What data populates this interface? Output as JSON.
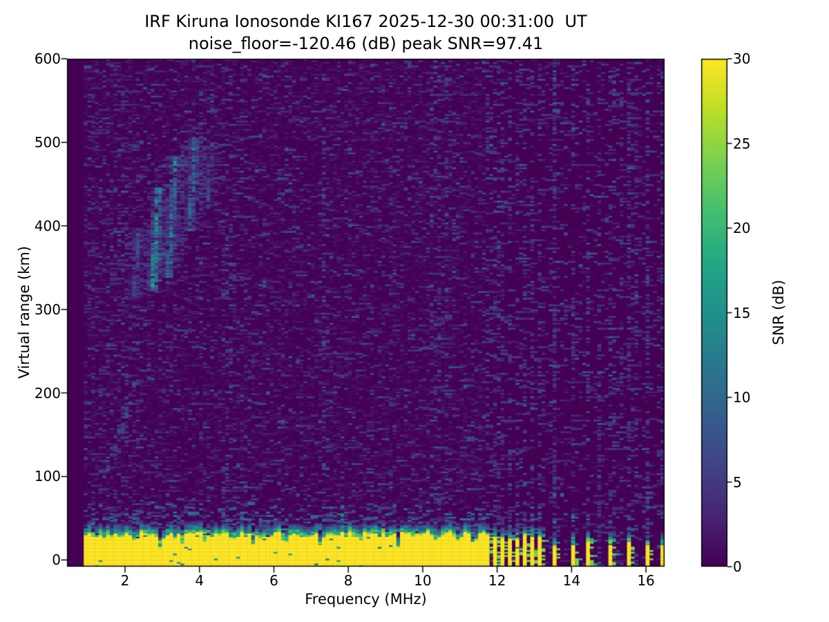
{
  "figure": {
    "title_line1": "IRF Kiruna Ionosonde KI167 2025-12-30 00:31:00  UT",
    "title_line2": "noise_floor=-120.46 (dB) peak SNR=97.41",
    "background_color": "#ffffff"
  },
  "chart_data": {
    "type": "heatmap",
    "title": "IRF Kiruna Ionosonde KI167 2025-12-30 00:31:00  UT",
    "subtitle": "noise_floor=-120.46 (dB) peak SNR=97.41",
    "station": "KI167",
    "timestamp_ut": "2025-12-30 00:31:00",
    "noise_floor_db": -120.46,
    "peak_snr_db": 97.41,
    "xlabel": "Frequency (MHz)",
    "ylabel": "Virtual range (km)",
    "colorbar_label": "SNR (dB)",
    "x_ticks": [
      2,
      4,
      6,
      8,
      10,
      12,
      14,
      16
    ],
    "y_ticks": [
      0,
      100,
      200,
      300,
      400,
      500,
      600
    ],
    "colorbar_ticks": [
      0,
      5,
      10,
      15,
      20,
      25,
      30
    ],
    "xlim": [
      0.44,
      16.5
    ],
    "ylim": [
      -8,
      600
    ],
    "clim": [
      0,
      30
    ],
    "colormap": "viridis",
    "grid": false,
    "features": {
      "data_freq_range_mhz": [
        0.89,
        16.45
      ],
      "freq_bin_mhz": 0.1,
      "range_bin_km": 2,
      "ground_band": {
        "top_km": 30,
        "transition_km": 15,
        "solid_until_mhz": 11.66,
        "notches_mhz": [
          1.4,
          2.26,
          2.95,
          3.56,
          4.15,
          4.9,
          5.42,
          6.3,
          7.27,
          8.3,
          9.33,
          10.37,
          11.0,
          11.4
        ]
      },
      "stripe_columns_mhz": [
        11.72,
        11.92,
        12.12,
        12.32,
        12.52,
        12.72,
        12.92,
        13.1,
        13.55,
        14.0,
        14.45,
        15.0,
        15.5,
        16.0,
        16.4
      ],
      "stripe_dense_below_mhz": 13.3,
      "echo_streaks": [
        {
          "f_mhz": 2.3,
          "range_km": [
            314,
            397
          ],
          "width_mhz": 0.18,
          "snr_db": 9
        },
        {
          "f_mhz": 2.82,
          "range_km": [
            323,
            445
          ],
          "width_mhz": 0.2,
          "snr_db": 18
        },
        {
          "f_mhz": 3.26,
          "range_km": [
            339,
            484
          ],
          "width_mhz": 0.17,
          "snr_db": 15
        },
        {
          "f_mhz": 3.8,
          "range_km": [
            395,
            505
          ],
          "width_mhz": 0.18,
          "snr_db": 13
        },
        {
          "f_mhz": 4.28,
          "range_km": [
            420,
            500
          ],
          "width_mhz": 0.12,
          "snr_db": 8
        }
      ],
      "diagonal_trace": {
        "from": [
          1.42,
          100
        ],
        "to": [
          2.35,
          220
        ],
        "snr_db": 7
      },
      "noise_columns_mhz": [
        4.62,
        7.35,
        10.3,
        10.62
      ],
      "noise": {
        "speckle_fill_fraction": 0.5,
        "blue_dash_probability": 0.05,
        "teal_fleck_probability": 0.006,
        "low_freq_boost_below_mhz": 2.35
      },
      "viridis_stops": [
        "#440154",
        "#482475",
        "#414487",
        "#355f8d",
        "#2a788e",
        "#21918c",
        "#22a884",
        "#44bf70",
        "#7ad151",
        "#bddf26",
        "#fde725"
      ]
    }
  }
}
